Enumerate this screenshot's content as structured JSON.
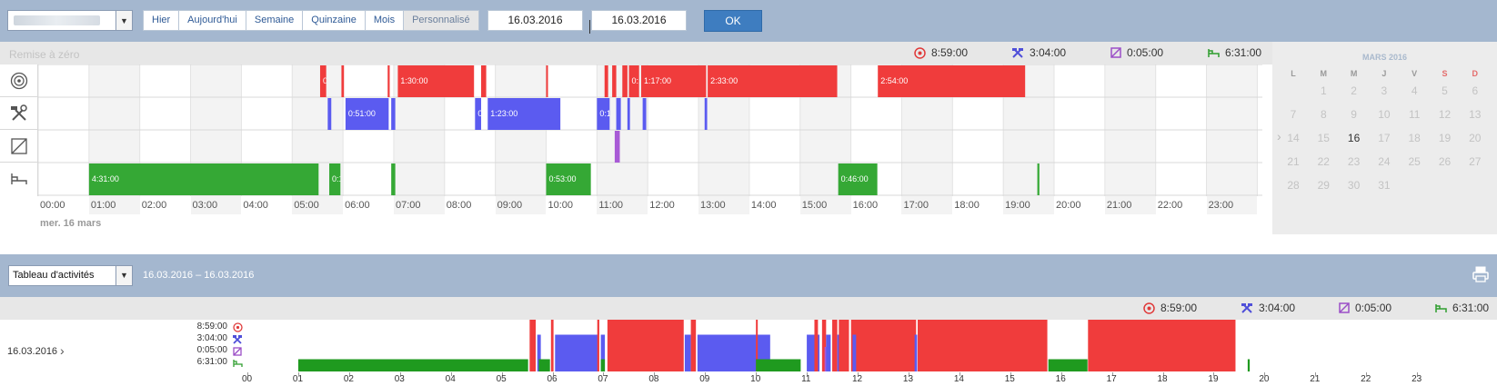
{
  "toolbar": {
    "vehicle_select_icon": "chevron-down-icon",
    "periods": [
      "Hier",
      "Aujourd'hui",
      "Semaine",
      "Quinzaine",
      "Mois",
      "Personnalisé"
    ],
    "active_period": "Personnalisé",
    "date_from": "16.03.2016",
    "date_to": "16.03.2016",
    "ok_label": "OK"
  },
  "summary": {
    "reset_label": "Remise à zéro",
    "totals": [
      {
        "icon": "driving-icon",
        "value": "8:59:00",
        "color": "#e03a3a"
      },
      {
        "icon": "work-icon",
        "value": "3:04:00",
        "color": "#4f4fd9"
      },
      {
        "icon": "availability-icon",
        "value": "0:05:00",
        "color": "#9b4fc7"
      },
      {
        "icon": "rest-icon",
        "value": "6:31:00",
        "color": "#2f9e2f"
      }
    ]
  },
  "gantt": {
    "date_label": "mer. 16 mars",
    "hours": [
      "00:00",
      "01:00",
      "02:00",
      "03:00",
      "04:00",
      "05:00",
      "06:00",
      "07:00",
      "08:00",
      "09:00",
      "10:00",
      "11:00",
      "12:00",
      "13:00",
      "14:00",
      "15:00",
      "16:00",
      "17:00",
      "18:00",
      "19:00",
      "20:00",
      "21:00",
      "22:00",
      "23:00"
    ],
    "colors": {
      "driving": "#f03c3c",
      "work": "#5b5bf0",
      "availability": "#a85ad6",
      "rest": "#35a835"
    },
    "rows": [
      {
        "type": "driving",
        "icon": "steering-wheel-icon",
        "segments": [
          {
            "start": 5.55,
            "end": 5.67,
            "label": "0:"
          },
          {
            "start": 5.97,
            "end": 6.02,
            "label": ""
          },
          {
            "start": 6.88,
            "end": 6.92,
            "label": ""
          },
          {
            "start": 7.08,
            "end": 8.58,
            "label": "1:30:00"
          },
          {
            "start": 8.72,
            "end": 8.82,
            "label": "0"
          },
          {
            "start": 10.0,
            "end": 10.03,
            "label": ""
          },
          {
            "start": 11.15,
            "end": 11.22,
            "label": ""
          },
          {
            "start": 11.3,
            "end": 11.38,
            "label": ""
          },
          {
            "start": 11.5,
            "end": 11.6,
            "label": ""
          },
          {
            "start": 11.63,
            "end": 11.83,
            "label": "0:1"
          },
          {
            "start": 11.87,
            "end": 13.15,
            "label": "1:17:00"
          },
          {
            "start": 13.18,
            "end": 15.73,
            "label": "2:33:00"
          },
          {
            "start": 16.53,
            "end": 19.43,
            "label": "2:54:00"
          }
        ]
      },
      {
        "type": "work",
        "icon": "hammer-wrench-icon",
        "segments": [
          {
            "start": 5.7,
            "end": 5.77,
            "label": ""
          },
          {
            "start": 6.05,
            "end": 6.9,
            "label": "0:51:00"
          },
          {
            "start": 6.95,
            "end": 7.03,
            "label": ""
          },
          {
            "start": 8.6,
            "end": 8.72,
            "label": "0"
          },
          {
            "start": 8.85,
            "end": 10.28,
            "label": "1:23:00"
          },
          {
            "start": 11.0,
            "end": 11.25,
            "label": "0:1"
          },
          {
            "start": 11.38,
            "end": 11.47,
            "label": ""
          },
          {
            "start": 11.6,
            "end": 11.65,
            "label": ""
          },
          {
            "start": 11.9,
            "end": 11.97,
            "label": ""
          },
          {
            "start": 13.12,
            "end": 13.17,
            "label": ""
          }
        ]
      },
      {
        "type": "availability",
        "icon": "availability-box-icon",
        "segments": [
          {
            "start": 11.35,
            "end": 11.45,
            "label": "0"
          }
        ]
      },
      {
        "type": "rest",
        "icon": "bed-icon",
        "segments": [
          {
            "start": 1.0,
            "end": 5.52,
            "label": "4:31:00"
          },
          {
            "start": 5.73,
            "end": 5.95,
            "label": "0:1"
          },
          {
            "start": 6.95,
            "end": 7.03,
            "label": "0"
          },
          {
            "start": 10.0,
            "end": 10.88,
            "label": "0:53:00"
          },
          {
            "start": 15.75,
            "end": 16.52,
            "label": "0:46:00"
          },
          {
            "start": 19.67,
            "end": 19.71,
            "label": ""
          }
        ]
      }
    ]
  },
  "calendar": {
    "title": "MARS 2016",
    "weekdays": [
      "L",
      "M",
      "M",
      "J",
      "V",
      "S",
      "D"
    ],
    "weekend_color": "#e46c6c",
    "first_weekday_index": 1,
    "days_in_month": 31,
    "today": 16,
    "chevron_icon": "chevron-right-icon"
  },
  "report": {
    "select_value": "Tableau d'activités",
    "range_text": "16.03.2016  –  16.03.2016",
    "print_icon": "printer-icon",
    "day_label": "16.03.2016",
    "totals": [
      "8:59:00",
      "3:04:00",
      "0:05:00",
      "6:31:00"
    ],
    "hours": [
      "00",
      "01",
      "02",
      "03",
      "04",
      "05",
      "06",
      "07",
      "08",
      "09",
      "10",
      "11",
      "12",
      "13",
      "14",
      "15",
      "16",
      "17",
      "18",
      "19",
      "20",
      "21",
      "22",
      "23"
    ],
    "levels": {
      "driving": 4,
      "work": 3,
      "availability": 2,
      "rest": 1
    }
  }
}
